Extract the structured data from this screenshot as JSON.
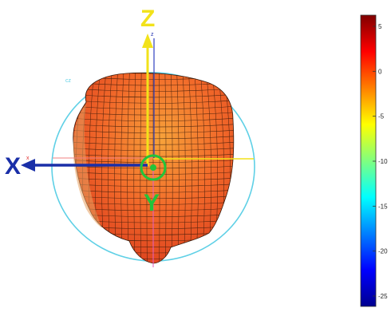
{
  "plot": {
    "axis_x_label": "X",
    "axis_y_label": "Y",
    "axis_z_label": "Z",
    "small_x_label": "x",
    "small_z_label": "z",
    "cyan_mark": "cz"
  },
  "colorbar": {
    "ticks": [
      "5",
      "0",
      "-5",
      "-10",
      "-15",
      "-20",
      "-25"
    ],
    "range": [
      -25,
      5
    ]
  },
  "colors": {
    "sphere_outline": "#5fd0e6",
    "x_arrow": "#1a2fa8",
    "z_arrow": "#f2e21a",
    "y_marker": "#22c43a",
    "pattern_fill": "#f05a28",
    "pattern_highlight": "#f7931e",
    "pattern_shadow": "#d8361a",
    "grid_lines": "#3a1a0a"
  },
  "icons": {
    "x_axis": "left-arrow",
    "z_axis": "up-arrow",
    "y_axis": "circle-target"
  }
}
